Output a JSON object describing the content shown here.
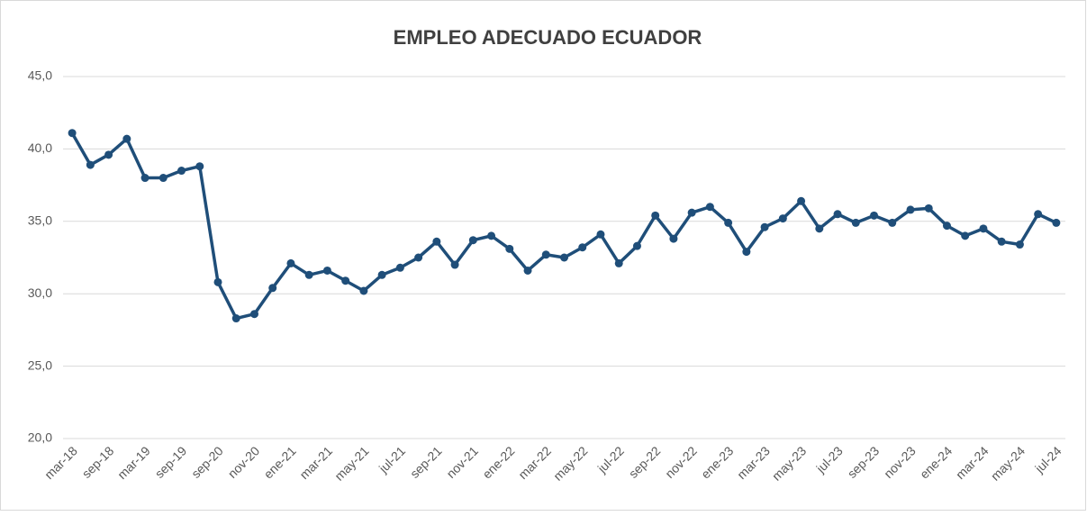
{
  "chart_data": {
    "type": "line",
    "title": "EMPLEO ADECUADO ECUADOR",
    "categories": [
      "mar-18",
      null,
      "sep-18",
      null,
      "mar-19",
      null,
      "sep-19",
      null,
      "sep-20",
      null,
      "nov-20",
      null,
      "ene-21",
      null,
      "mar-21",
      null,
      "may-21",
      null,
      "jul-21",
      null,
      "sep-21",
      null,
      "nov-21",
      null,
      "ene-22",
      null,
      "mar-22",
      null,
      "may-22",
      null,
      "jul-22",
      null,
      "sep-22",
      null,
      "nov-22",
      null,
      "ene-23",
      null,
      "mar-23",
      null,
      "may-23",
      null,
      "jul-23",
      null,
      "sep-23",
      null,
      "nov-23",
      null,
      "ene-24",
      null,
      "mar-24",
      null,
      "may-24",
      null,
      "jul-24"
    ],
    "values": [
      41.1,
      38.9,
      39.6,
      40.7,
      38.0,
      38.0,
      38.5,
      38.8,
      30.8,
      28.3,
      28.6,
      30.4,
      32.1,
      31.3,
      31.6,
      30.9,
      30.2,
      31.3,
      31.8,
      32.5,
      33.6,
      32.0,
      33.7,
      34.0,
      33.1,
      31.6,
      32.7,
      32.5,
      33.2,
      34.1,
      32.1,
      33.3,
      35.4,
      33.8,
      35.6,
      36.0,
      34.9,
      32.9,
      34.6,
      35.2,
      36.4,
      34.5,
      35.5,
      34.9,
      35.4,
      34.9,
      35.8,
      35.9,
      34.7,
      34.0,
      34.5,
      33.6,
      33.4,
      35.5,
      34.9
    ],
    "color": "#1f4e79",
    "ylim": [
      20,
      45
    ],
    "yticks": [
      {
        "value": 20,
        "label": "20,0"
      },
      {
        "value": 25,
        "label": "25,0"
      },
      {
        "value": 30,
        "label": "30,0"
      },
      {
        "value": 35,
        "label": "35,0"
      },
      {
        "value": 40,
        "label": "40,0"
      },
      {
        "value": 45,
        "label": "45,0"
      }
    ],
    "grid": true
  }
}
